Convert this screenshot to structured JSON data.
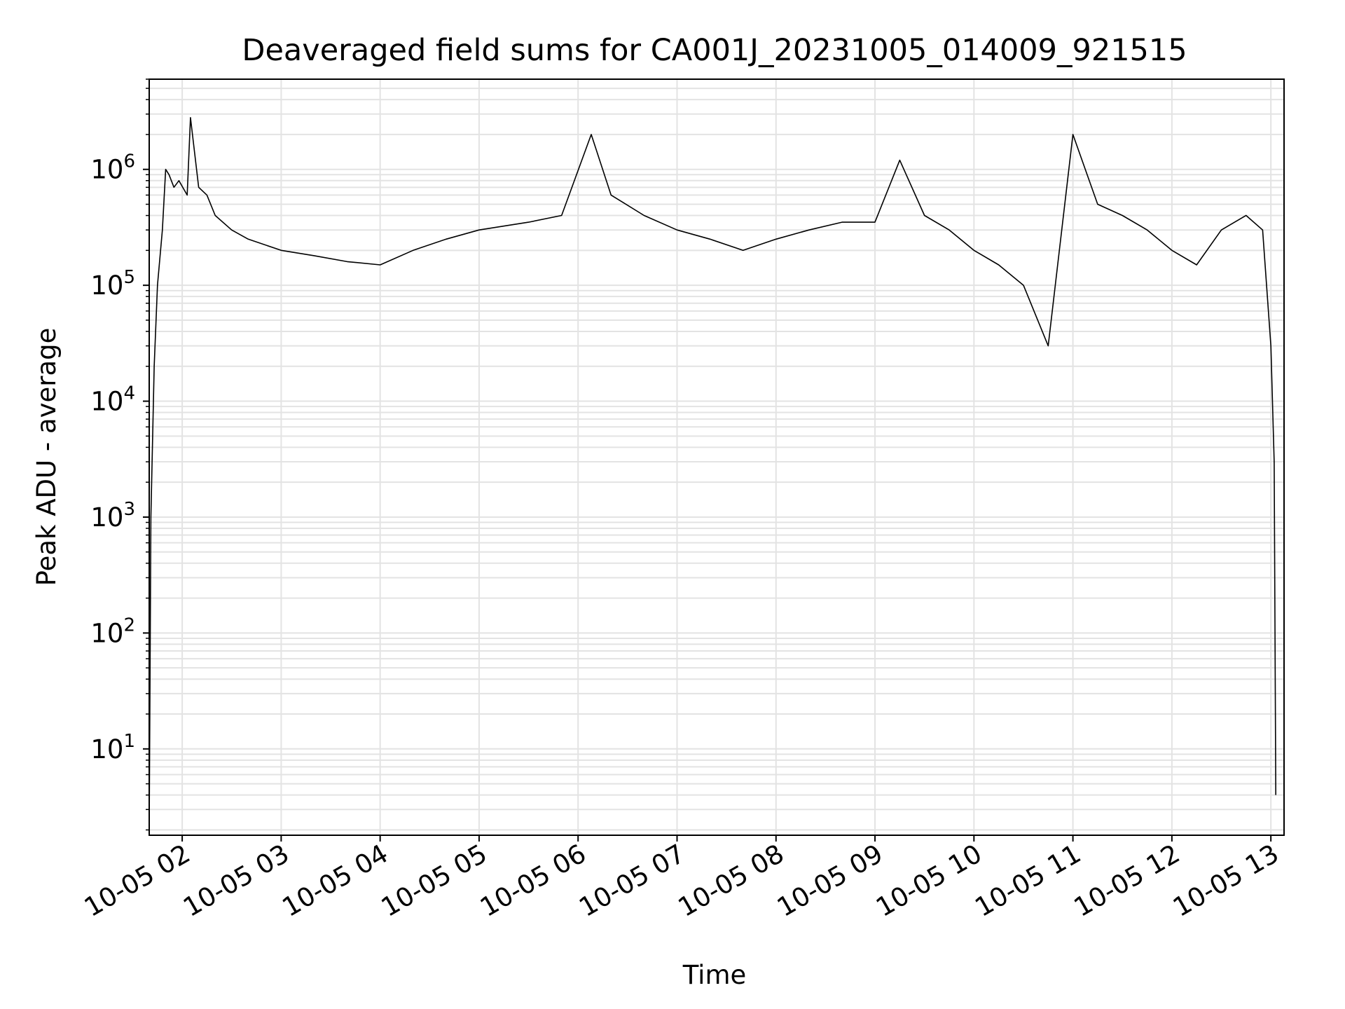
{
  "chart_data": {
    "type": "line",
    "title": "Deaveraged field sums for CA001J_20231005_014009_921515",
    "xlabel": "Time",
    "ylabel": "Peak ADU - average",
    "yscale": "log",
    "ylim": [
      1.8,
      6000000
    ],
    "xlim": [
      "2023-10-05 01:40:00",
      "2023-10-05 13:08:00"
    ],
    "x_ticks": [
      {
        "value": "2023-10-05 02:00",
        "label": "10-05 02"
      },
      {
        "value": "2023-10-05 03:00",
        "label": "10-05 03"
      },
      {
        "value": "2023-10-05 04:00",
        "label": "10-05 04"
      },
      {
        "value": "2023-10-05 05:00",
        "label": "10-05 05"
      },
      {
        "value": "2023-10-05 06:00",
        "label": "10-05 06"
      },
      {
        "value": "2023-10-05 07:00",
        "label": "10-05 07"
      },
      {
        "value": "2023-10-05 08:00",
        "label": "10-05 08"
      },
      {
        "value": "2023-10-05 09:00",
        "label": "10-05 09"
      },
      {
        "value": "2023-10-05 10:00",
        "label": "10-05 10"
      },
      {
        "value": "2023-10-05 11:00",
        "label": "10-05 11"
      },
      {
        "value": "2023-10-05 12:00",
        "label": "10-05 12"
      },
      {
        "value": "2023-10-05 13:00",
        "label": "10-05 13"
      }
    ],
    "y_ticks": [
      {
        "value": 10,
        "base": "10",
        "exp": "1"
      },
      {
        "value": 100,
        "base": "10",
        "exp": "2"
      },
      {
        "value": 1000,
        "base": "10",
        "exp": "3"
      },
      {
        "value": 10000,
        "base": "10",
        "exp": "4"
      },
      {
        "value": 100000,
        "base": "10",
        "exp": "5"
      },
      {
        "value": 1000000,
        "base": "10",
        "exp": "6"
      }
    ],
    "grid": true,
    "series": [
      {
        "color": "#000000",
        "x": [
          "2023-10-05 01:40",
          "2023-10-05 01:41",
          "2023-10-05 01:43",
          "2023-10-05 01:45",
          "2023-10-05 01:48",
          "2023-10-05 01:50",
          "2023-10-05 01:52",
          "2023-10-05 01:55",
          "2023-10-05 01:58",
          "2023-10-05 02:03",
          "2023-10-05 02:05",
          "2023-10-05 02:10",
          "2023-10-05 02:15",
          "2023-10-05 02:20",
          "2023-10-05 02:30",
          "2023-10-05 02:40",
          "2023-10-05 03:00",
          "2023-10-05 03:20",
          "2023-10-05 03:40",
          "2023-10-05 04:00",
          "2023-10-05 04:20",
          "2023-10-05 04:40",
          "2023-10-05 05:00",
          "2023-10-05 05:30",
          "2023-10-05 05:50",
          "2023-10-05 06:08",
          "2023-10-05 06:20",
          "2023-10-05 06:40",
          "2023-10-05 07:00",
          "2023-10-05 07:20",
          "2023-10-05 07:40",
          "2023-10-05 08:00",
          "2023-10-05 08:20",
          "2023-10-05 08:40",
          "2023-10-05 09:00",
          "2023-10-05 09:15",
          "2023-10-05 09:30",
          "2023-10-05 09:45",
          "2023-10-05 10:00",
          "2023-10-05 10:15",
          "2023-10-05 10:30",
          "2023-10-05 10:45",
          "2023-10-05 11:00",
          "2023-10-05 11:15",
          "2023-10-05 11:30",
          "2023-10-05 11:45",
          "2023-10-05 12:00",
          "2023-10-05 12:15",
          "2023-10-05 12:30",
          "2023-10-05 12:45",
          "2023-10-05 12:55",
          "2023-10-05 13:00",
          "2023-10-05 13:02",
          "2023-10-05 13:03"
        ],
        "y": [
          2,
          1000,
          20000,
          100000,
          300000,
          1000000,
          900000,
          700000,
          800000,
          600000,
          2800000,
          700000,
          600000,
          400000,
          300000,
          250000,
          200000,
          180000,
          160000,
          150000,
          200000,
          250000,
          300000,
          350000,
          400000,
          2000000,
          600000,
          400000,
          300000,
          250000,
          200000,
          250000,
          300000,
          350000,
          350000,
          1200000,
          400000,
          300000,
          200000,
          150000,
          100000,
          30000,
          2000000,
          500000,
          400000,
          300000,
          200000,
          150000,
          300000,
          400000,
          300000,
          30000,
          3000,
          4
        ]
      }
    ]
  }
}
